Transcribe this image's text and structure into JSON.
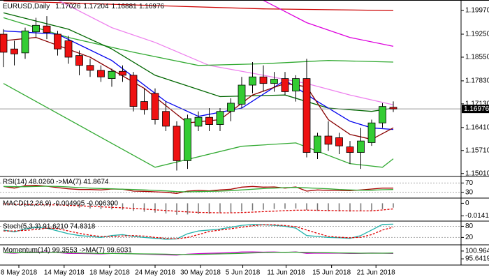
{
  "chart_data": [
    {
      "type": "candlestick",
      "symbol": "EURUSD,Daily",
      "ohlc": [
        1.17026,
        1.17204,
        1.16881,
        1.16976
      ],
      "open": [
        1.1925,
        1.188,
        1.1868,
        1.1932,
        1.195,
        1.1925,
        1.1905,
        1.186,
        1.183,
        1.1815,
        1.179,
        1.1812,
        1.18,
        1.172,
        1.1745,
        1.169,
        1.1645,
        1.154,
        1.1645,
        1.1672,
        1.165,
        1.169,
        1.1712,
        1.177,
        1.1795,
        1.1775,
        1.179,
        1.1752,
        1.179,
        1.1565,
        1.1615,
        1.161,
        1.1582,
        1.1565,
        1.1595,
        1.1655,
        1.17026
      ],
      "high": [
        1.194,
        1.1905,
        1.1945,
        1.1975,
        1.198,
        1.1935,
        1.192,
        1.1875,
        1.185,
        1.183,
        1.182,
        1.183,
        1.181,
        1.176,
        1.176,
        1.172,
        1.166,
        1.168,
        1.169,
        1.17,
        1.17,
        1.173,
        1.1795,
        1.184,
        1.183,
        1.181,
        1.181,
        1.18,
        1.185,
        1.1625,
        1.166,
        1.1625,
        1.16,
        1.164,
        1.1665,
        1.1715,
        1.17204
      ],
      "low": [
        1.1825,
        1.183,
        1.185,
        1.1915,
        1.191,
        1.186,
        1.1835,
        1.18,
        1.1795,
        1.178,
        1.1765,
        1.178,
        1.169,
        1.168,
        1.165,
        1.163,
        1.151,
        1.1515,
        1.163,
        1.163,
        1.163,
        1.166,
        1.17,
        1.1745,
        1.175,
        1.175,
        1.174,
        1.172,
        1.155,
        1.1545,
        1.157,
        1.156,
        1.153,
        1.1515,
        1.1585,
        1.164,
        1.16881
      ],
      "close": [
        1.187,
        1.1865,
        1.1935,
        1.1952,
        1.193,
        1.188,
        1.1855,
        1.183,
        1.1815,
        1.1795,
        1.1812,
        1.18,
        1.1705,
        1.1695,
        1.1665,
        1.1645,
        1.154,
        1.1668,
        1.1672,
        1.165,
        1.169,
        1.1715,
        1.177,
        1.1795,
        1.1775,
        1.1788,
        1.175,
        1.179,
        1.1565,
        1.1615,
        1.159,
        1.1585,
        1.1565,
        1.16,
        1.1655,
        1.1705,
        1.16976
      ],
      "up_color": "#33cc33",
      "down_color": "#ee1111",
      "lines": [
        {
          "color": "#cc0000",
          "x": [
            0,
            24,
            36
          ],
          "values": [
            1.2026,
            1.2002,
            1.1997
          ]
        },
        {
          "color": "#dd00dd",
          "x": [
            24,
            28,
            32,
            36
          ],
          "values": [
            1.2028,
            1.196,
            1.1915,
            1.1888
          ]
        },
        {
          "color": "#ee82ee",
          "x": [
            5,
            10,
            14,
            19,
            24,
            28,
            32,
            36
          ],
          "values": [
            1.2029,
            1.1945,
            1.19,
            1.183,
            1.18,
            1.1775,
            1.174,
            1.171
          ]
        },
        {
          "color": "#33aa33",
          "x": [
            0,
            6,
            12,
            18,
            24,
            30,
            36
          ],
          "values": [
            1.1975,
            1.1915,
            1.187,
            1.183,
            1.1835,
            1.1845,
            1.184
          ]
        },
        {
          "color": "#33aa33",
          "x": [
            0,
            14,
            22,
            27,
            32,
            35,
            36
          ],
          "values": [
            1.1775,
            1.152,
            1.1584,
            1.1594,
            1.1531,
            1.152,
            1.1546
          ]
        },
        {
          "color": "#006600",
          "x": [
            0,
            6,
            10,
            14,
            20,
            26,
            30,
            34,
            36
          ],
          "values": [
            1.199,
            1.194,
            1.188,
            1.18,
            1.1735,
            1.174,
            1.17,
            1.169,
            1.17
          ]
        },
        {
          "color": "#0000ee",
          "x": [
            0,
            5,
            10,
            15,
            18,
            22,
            26,
            29,
            32,
            34,
            36
          ],
          "values": [
            1.1935,
            1.1925,
            1.1845,
            1.172,
            1.1675,
            1.17,
            1.1785,
            1.172,
            1.166,
            1.164,
            1.1635
          ]
        },
        {
          "color": "#880000",
          "x": [
            0,
            3,
            8,
            13,
            17,
            20,
            23,
            26,
            28,
            30,
            32,
            34,
            36
          ],
          "values": [
            1.1905,
            1.1915,
            1.1855,
            1.176,
            1.1655,
            1.1665,
            1.174,
            1.1775,
            1.1765,
            1.1665,
            1.162,
            1.1605,
            1.164
          ]
        }
      ],
      "price_line": true,
      "ylim": [
        1.1492,
        1.2029
      ],
      "yticks": [
        {
          "value": 1.1997,
          "label": "1.19970"
        },
        {
          "value": 1.1925,
          "label": "1.19250"
        },
        {
          "value": 1.1855,
          "label": "1.18550"
        },
        {
          "value": 1.1783,
          "label": "1.17830"
        },
        {
          "value": 1.1713,
          "label": "1.17130"
        },
        {
          "value": 1.1641,
          "label": "1.16410"
        },
        {
          "value": 1.1571,
          "label": "1.15710"
        },
        {
          "value": 1.1501,
          "label": "1.15010"
        }
      ],
      "xticks": [
        {
          "value": 1.42,
          "label": "8 May 2018"
        },
        {
          "value": 5.6,
          "label": "14 May 2018"
        },
        {
          "value": 9.8,
          "label": "18 May 2018"
        },
        {
          "value": 14,
          "label": "24 May 2018"
        },
        {
          "value": 18.2,
          "label": "30 May 2018"
        },
        {
          "value": 22.1,
          "label": "5 Jun 2018"
        },
        {
          "value": 26.1,
          "label": "11 Jun 2018"
        },
        {
          "value": 30.3,
          "label": "15 Jun 2018"
        },
        {
          "value": 34.4,
          "label": "21 Jun 2018"
        }
      ]
    },
    {
      "type": "line",
      "title": "RSI(14) 48.0260 ->MA(7) 41.8674",
      "ylim": [
        5,
        98
      ],
      "yticks": [
        70,
        30
      ],
      "grid": true,
      "series": [
        {
          "color": "#aa0000",
          "values": [
            55,
            48,
            58,
            60,
            56,
            50,
            45,
            42,
            42,
            40,
            44,
            43,
            35,
            34,
            32,
            30,
            25,
            35,
            38,
            36,
            40,
            43,
            52,
            55,
            52,
            53,
            48,
            53,
            35,
            40,
            38,
            38,
            37,
            40,
            44,
            48,
            48.026
          ]
        },
        {
          "color": "#33aa33",
          "values": [
            55,
            54,
            54,
            55,
            56,
            55,
            53,
            50,
            48,
            46,
            45,
            43,
            42,
            40,
            38,
            36,
            33,
            32,
            33,
            34,
            35,
            37,
            40,
            43,
            46,
            48,
            50,
            51,
            49,
            47,
            45,
            42,
            40,
            39,
            39,
            41,
            41.8674
          ]
        }
      ]
    },
    {
      "type": "bar",
      "title": "MACD(12,26,9) -0.004905 -0.006300",
      "ylim": [
        -0.02,
        0.0058
      ],
      "yticks": [
        0,
        -0.014194
      ],
      "grid": false,
      "color": "#777777",
      "values": [
        -0.001,
        -0.0018,
        -0.0022,
        -0.002,
        -0.0022,
        -0.003,
        -0.004,
        -0.005,
        -0.0058,
        -0.0065,
        -0.0068,
        -0.0072,
        -0.0085,
        -0.0095,
        -0.0105,
        -0.0115,
        -0.0128,
        -0.0125,
        -0.012,
        -0.0118,
        -0.0112,
        -0.0105,
        -0.0092,
        -0.008,
        -0.0072,
        -0.0065,
        -0.0062,
        -0.0058,
        -0.0075,
        -0.0085,
        -0.009,
        -0.0092,
        -0.0094,
        -0.009,
        -0.008,
        -0.0066,
        -0.004905
      ],
      "series": [
        {
          "color": "#dd0000",
          "dashed": true,
          "values": [
            -0.0008,
            -0.001,
            -0.0013,
            -0.0015,
            -0.0017,
            -0.0019,
            -0.0023,
            -0.0028,
            -0.0034,
            -0.004,
            -0.0046,
            -0.0051,
            -0.0058,
            -0.0065,
            -0.0073,
            -0.0081,
            -0.009,
            -0.0097,
            -0.0102,
            -0.0105,
            -0.0107,
            -0.0107,
            -0.0104,
            -0.0099,
            -0.0094,
            -0.0088,
            -0.0083,
            -0.0078,
            -0.0077,
            -0.0079,
            -0.0081,
            -0.0083,
            -0.0085,
            -0.0086,
            -0.0085,
            -0.0075,
            -0.0063
          ]
        }
      ]
    },
    {
      "type": "line",
      "title": "Stoch(5,3,3) 91.6210 74.8318",
      "ylim": [
        -20,
        108
      ],
      "yticks": [
        80,
        20
      ],
      "grid": true,
      "series": [
        {
          "color": "#20b2aa",
          "values": [
            60,
            50,
            65,
            75,
            70,
            55,
            40,
            30,
            25,
            20,
            30,
            35,
            25,
            20,
            15,
            10,
            12,
            40,
            55,
            60,
            65,
            75,
            85,
            90,
            88,
            85,
            80,
            70,
            30,
            25,
            20,
            18,
            15,
            30,
            60,
            90,
            91.621
          ]
        },
        {
          "color": "#dd0000",
          "dashed": true,
          "values": [
            55,
            55,
            58,
            63,
            70,
            67,
            55,
            42,
            32,
            25,
            25,
            28,
            30,
            27,
            20,
            15,
            12,
            20,
            35,
            52,
            60,
            67,
            75,
            83,
            88,
            88,
            84,
            78,
            60,
            42,
            25,
            21,
            18,
            21,
            35,
            60,
            74.8318
          ]
        }
      ]
    },
    {
      "type": "line",
      "title": "Momentum(14) 99.3553 ->MA(7) 99.6031",
      "ylim": [
        91.4,
        105.2
      ],
      "yticks": [
        100.9647,
        95.6419
      ],
      "grid": false,
      "series": [
        {
          "color": "#cc00cc",
          "values": [
            99.8,
            99.5,
            100.0,
            100.2,
            100.3,
            99.9,
            99.4,
            99.3,
            99.2,
            99.0,
            99.3,
            99.4,
            99.0,
            98.8,
            98.6,
            98.4,
            98.2,
            98.8,
            99.2,
            99.4,
            99.6,
            99.8,
            100.3,
            100.4,
            100.2,
            100.3,
            100.0,
            100.4,
            99.4,
            99.6,
            99.5,
            99.5,
            99.3,
            99.4,
            99.6,
            99.5,
            99.3553
          ]
        },
        {
          "color": "#33aa33",
          "values": [
            99.9,
            99.8,
            99.8,
            99.9,
            100.0,
            100.0,
            99.9,
            99.7,
            99.5,
            99.3,
            99.3,
            99.2,
            99.1,
            99.0,
            98.9,
            98.8,
            98.6,
            98.6,
            98.7,
            98.8,
            99.0,
            99.2,
            99.4,
            99.7,
            99.9,
            100.0,
            100.1,
            100.2,
            100.0,
            99.9,
            99.8,
            99.7,
            99.6,
            99.5,
            99.5,
            99.5,
            99.6031
          ]
        }
      ]
    }
  ]
}
